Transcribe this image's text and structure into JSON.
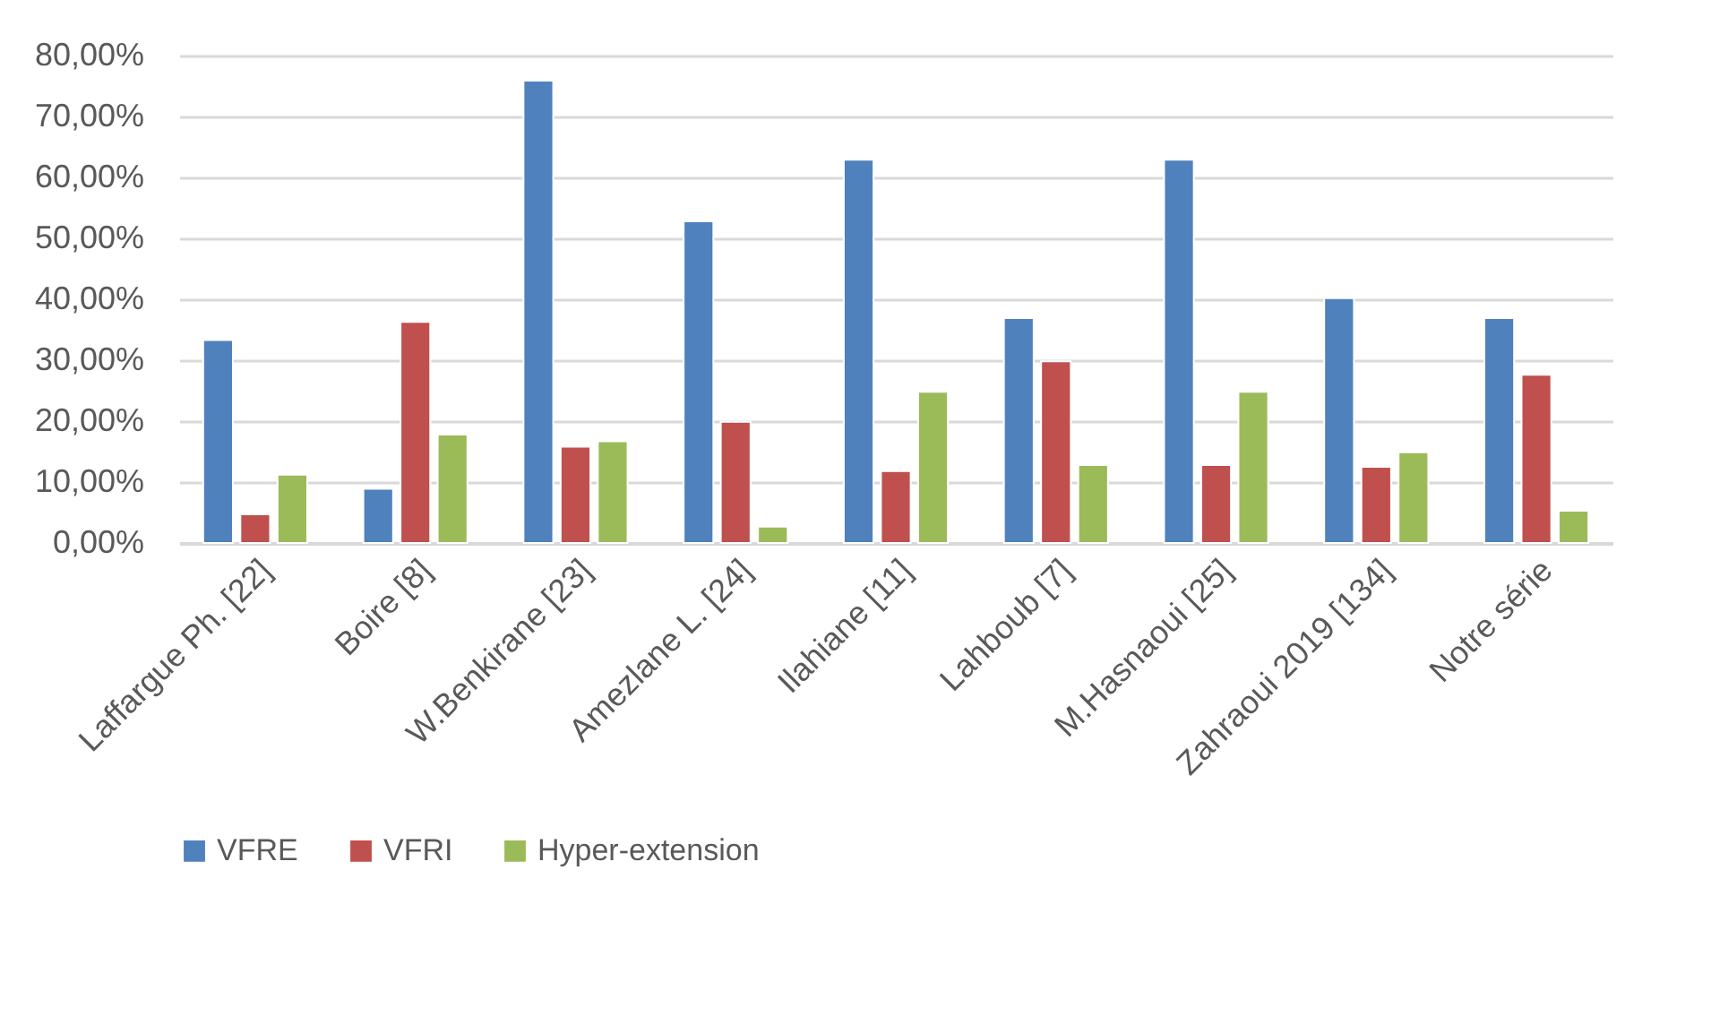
{
  "chart_data": {
    "type": "bar",
    "categories": [
      "Laffargue Ph. [22]",
      "Boire [8]",
      "W.Benkirane [23]",
      "Amezlane L. [24]",
      "Ilahiane [11]",
      "Lahboub [7]",
      "M.Hasnaoui [25]",
      "Zahraoui 2019 [134]",
      "Notre série"
    ],
    "series": [
      {
        "name": "VFRE",
        "color": "#4f81bd",
        "values": [
          33.3,
          8.9,
          75.9,
          52.8,
          62.9,
          36.9,
          62.9,
          40.2,
          36.9
        ]
      },
      {
        "name": "VFRI",
        "color": "#c0504d",
        "values": [
          4.7,
          36.3,
          15.8,
          19.9,
          11.8,
          29.8,
          12.8,
          12.5,
          27.6
        ]
      },
      {
        "name": "Hyper-extension",
        "color": "#9bbb59",
        "values": [
          11.2,
          17.8,
          16.7,
          2.7,
          24.8,
          12.8,
          24.8,
          14.9,
          5.3
        ]
      }
    ],
    "ylim": [
      0,
      80
    ],
    "yticks": [
      {
        "value": 0,
        "label": "0,00%"
      },
      {
        "value": 10,
        "label": "10,00%"
      },
      {
        "value": 20,
        "label": "20,00%"
      },
      {
        "value": 30,
        "label": "30,00%"
      },
      {
        "value": 40,
        "label": "40,00%"
      },
      {
        "value": 50,
        "label": "50,00%"
      },
      {
        "value": 60,
        "label": "60,00%"
      },
      {
        "value": 70,
        "label": "70,00%"
      },
      {
        "value": 80,
        "label": "80,00%"
      }
    ],
    "grid": "y",
    "legend": "bottom"
  }
}
